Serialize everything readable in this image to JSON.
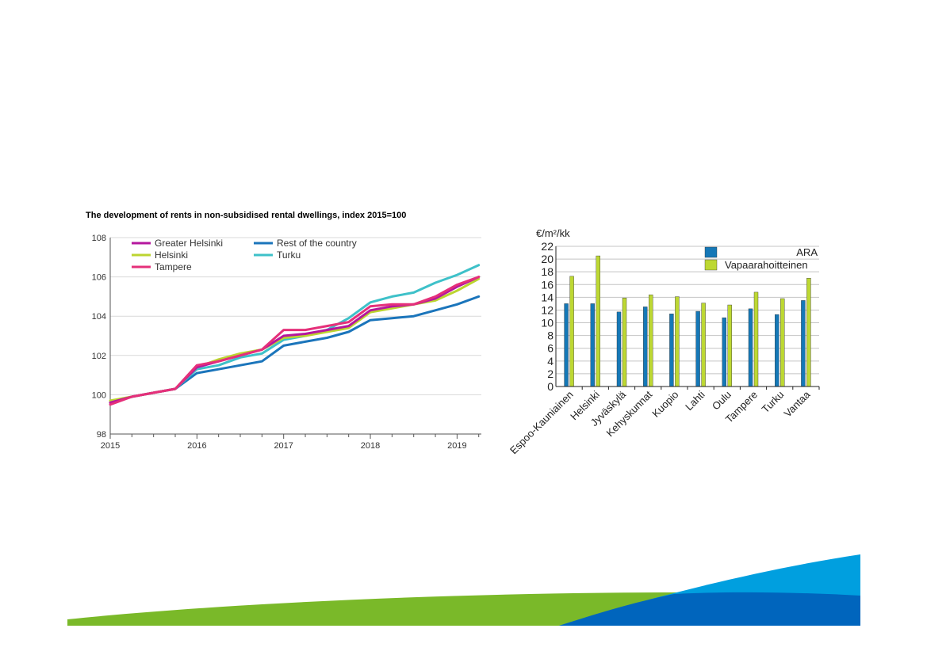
{
  "chart_data": [
    {
      "type": "line",
      "title": "The development of rents in non-subsidised rental dwellings, index 2015=100",
      "xlabel": "",
      "ylabel": "",
      "x_ticks": [
        "2015",
        "2016",
        "2017",
        "2018",
        "2019"
      ],
      "y_ticks": [
        "98",
        "100",
        "102",
        "104",
        "106",
        "108"
      ],
      "xlim": [
        2015,
        2019.28
      ],
      "ylim": [
        98,
        108
      ],
      "grid": true,
      "legend_position": "top-left",
      "x": [
        2015.0,
        2015.25,
        2015.5,
        2015.75,
        2016.0,
        2016.25,
        2016.5,
        2016.75,
        2017.0,
        2017.25,
        2017.5,
        2017.75,
        2018.0,
        2018.25,
        2018.5,
        2018.75,
        2019.0,
        2019.25
      ],
      "series": [
        {
          "name": "Greater Helsinki",
          "color": "#b5179e",
          "values": [
            99.6,
            99.9,
            100.1,
            100.3,
            101.4,
            101.7,
            102.0,
            102.3,
            103.0,
            103.1,
            103.3,
            103.5,
            104.3,
            104.5,
            104.6,
            104.9,
            105.5,
            106.0
          ]
        },
        {
          "name": "Rest of the country",
          "color": "#1b75bb",
          "values": [
            99.6,
            99.9,
            100.1,
            100.3,
            101.1,
            101.3,
            101.5,
            101.7,
            102.5,
            102.7,
            102.9,
            103.2,
            103.8,
            103.9,
            104.0,
            104.3,
            104.6,
            105.0
          ]
        },
        {
          "name": "Helsinki",
          "color": "#bcd530",
          "values": [
            99.7,
            99.9,
            100.1,
            100.3,
            101.4,
            101.8,
            102.1,
            102.3,
            102.9,
            103.0,
            103.2,
            103.4,
            104.2,
            104.4,
            104.6,
            104.8,
            105.3,
            105.9
          ]
        },
        {
          "name": "Turku",
          "color": "#3ec1c9",
          "values": [
            99.6,
            99.9,
            100.1,
            100.3,
            101.3,
            101.5,
            101.9,
            102.1,
            102.8,
            103.0,
            103.3,
            103.9,
            104.7,
            105.0,
            105.2,
            105.7,
            106.1,
            106.6
          ]
        },
        {
          "name": "Tampere",
          "color": "#e5307a",
          "values": [
            99.5,
            99.9,
            100.1,
            100.3,
            101.5,
            101.7,
            102.0,
            102.3,
            103.3,
            103.3,
            103.5,
            103.7,
            104.5,
            104.6,
            104.6,
            105.0,
            105.6,
            106.0
          ]
        }
      ]
    },
    {
      "type": "bar",
      "title": "",
      "ylabel": "€/m²/kk",
      "xlabel": "",
      "ylim": [
        0,
        22
      ],
      "y_ticks": [
        "0",
        "2",
        "4",
        "6",
        "8",
        "10",
        "12",
        "14",
        "16",
        "18",
        "20",
        "22"
      ],
      "grid": true,
      "legend_position": "top-right",
      "categories": [
        "Espoo-Kauniainen",
        "Helsinki",
        "Jyväskylä",
        "Kehyskunnat",
        "Kuopio",
        "Lahti",
        "Oulu",
        "Tampere",
        "Turku",
        "Vantaa"
      ],
      "series": [
        {
          "name": "ARA",
          "color": "#1578b7",
          "values": [
            13.0,
            13.0,
            11.7,
            12.5,
            11.4,
            11.8,
            10.8,
            12.2,
            11.3,
            13.5
          ]
        },
        {
          "name": "Vapaarahoitteinen",
          "color": "#bdd833",
          "values": [
            17.3,
            20.5,
            13.9,
            14.4,
            14.1,
            13.1,
            12.8,
            14.8,
            13.8,
            17.0
          ]
        }
      ]
    }
  ],
  "decoration": {
    "footer_colors": [
      "#7ab929",
      "#009fdf",
      "#0065bd"
    ]
  }
}
